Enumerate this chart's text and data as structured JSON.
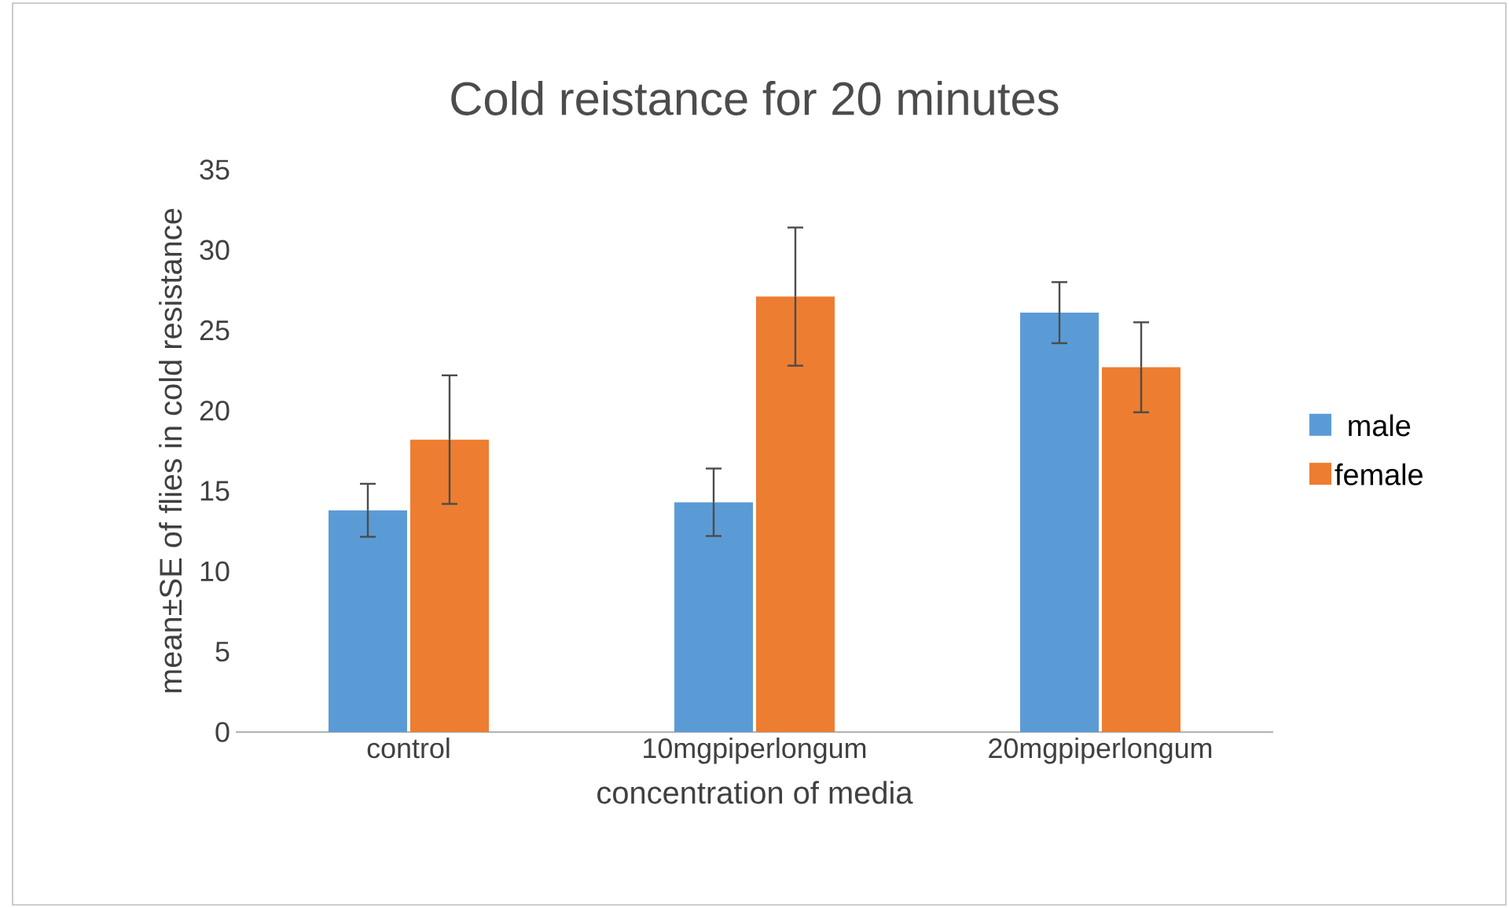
{
  "chart_data": {
    "type": "bar",
    "title": "Cold reistance for 20 minutes",
    "xlabel": "concentration of media",
    "ylabel": "mean±SE of flies in cold resistance",
    "categories": [
      "control",
      "10mgpiperlongum",
      "20mgpiperlongum"
    ],
    "series": [
      {
        "name": "male",
        "color": "#5b9bd5",
        "values": [
          13.8,
          14.3,
          26.1
        ],
        "errors": [
          1.65,
          2.1,
          1.9
        ]
      },
      {
        "name": "female",
        "color": "#ed7d31",
        "values": [
          18.2,
          27.1,
          22.7
        ],
        "errors": [
          4.0,
          4.3,
          2.8
        ]
      }
    ],
    "ylim": [
      0,
      35
    ],
    "yticks": [
      0,
      5,
      10,
      15,
      20,
      25,
      30,
      35
    ],
    "legend": "right"
  }
}
